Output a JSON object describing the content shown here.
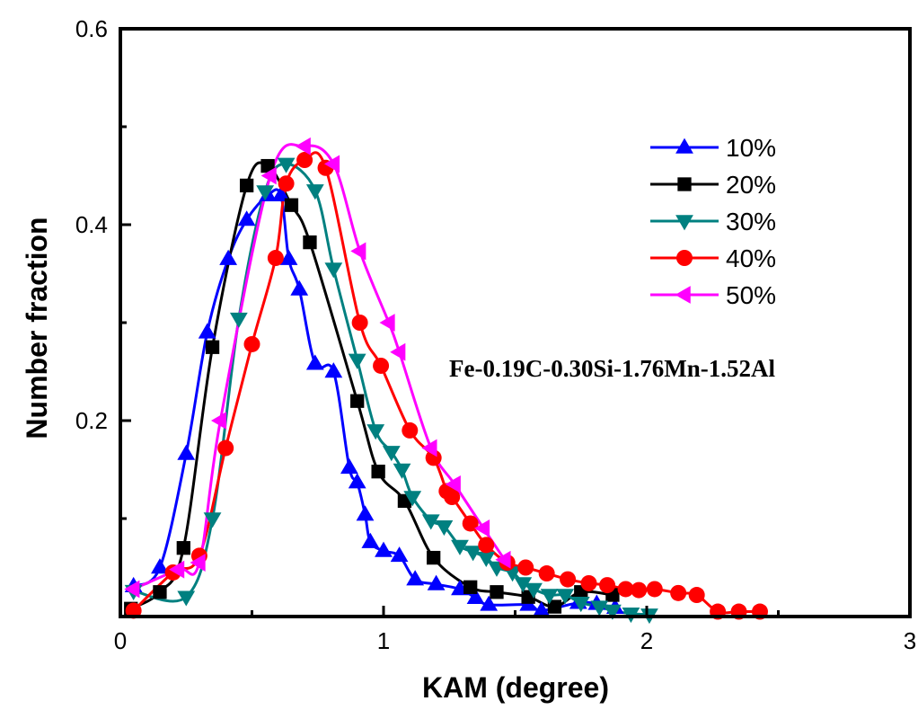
{
  "chart_data": {
    "type": "line",
    "title": "",
    "xlabel": "KAM (degree)",
    "ylabel": "Number fraction",
    "xlim": [
      0,
      3
    ],
    "ylim": [
      0,
      0.6
    ],
    "xticks": [
      0,
      1,
      2,
      3
    ],
    "xtick_labels": [
      "0",
      "1",
      "2",
      "3"
    ],
    "xminor": [
      0.5,
      1.5,
      2.5
    ],
    "yticks": [
      0.2,
      0.4,
      0.6
    ],
    "ytick_labels": [
      "0.2",
      "0.4",
      "0.6"
    ],
    "yminor": [
      0.1,
      0.3,
      0.5
    ],
    "grid": false,
    "legend_position": "top-right",
    "annotation": "Fe-0.19C-0.30Si-1.76Mn-1.52Al",
    "series": [
      {
        "name": "10%",
        "color": "#0000ff",
        "marker": "triangle-up",
        "x": [
          0.05,
          0.15,
          0.25,
          0.33,
          0.41,
          0.48,
          0.56,
          0.61,
          0.64,
          0.68,
          0.74,
          0.81,
          0.87,
          0.9,
          0.93,
          0.95,
          1.0,
          1.06,
          1.12,
          1.2,
          1.29,
          1.35,
          1.4,
          1.55,
          1.6,
          1.74,
          1.81,
          1.88
        ],
        "y": [
          0.031,
          0.05,
          0.166,
          0.29,
          0.365,
          0.405,
          0.43,
          0.43,
          0.365,
          0.334,
          0.258,
          0.25,
          0.152,
          0.137,
          0.104,
          0.076,
          0.067,
          0.062,
          0.038,
          0.033,
          0.028,
          0.019,
          0.012,
          0.012,
          0.006,
          0.014,
          0.013,
          0.009
        ]
      },
      {
        "name": "20%",
        "color": "#000000",
        "marker": "square",
        "x": [
          0.04,
          0.15,
          0.24,
          0.35,
          0.48,
          0.56,
          0.65,
          0.72,
          0.9,
          0.98,
          1.08,
          1.19,
          1.33,
          1.43,
          1.55,
          1.65,
          1.75,
          1.87
        ],
        "y": [
          0.008,
          0.025,
          0.07,
          0.275,
          0.44,
          0.46,
          0.42,
          0.382,
          0.22,
          0.148,
          0.118,
          0.06,
          0.03,
          0.025,
          0.02,
          0.01,
          0.025,
          0.022
        ]
      },
      {
        "name": "30%",
        "color": "#008080",
        "marker": "triangle-down",
        "x": [
          0.05,
          0.25,
          0.35,
          0.45,
          0.55,
          0.63,
          0.74,
          0.81,
          0.9,
          0.97,
          1.03,
          1.07,
          1.11,
          1.18,
          1.23,
          1.29,
          1.34,
          1.39,
          1.43,
          1.49,
          1.53,
          1.57,
          1.63,
          1.69,
          1.75,
          1.82,
          1.87,
          1.94,
          2.01
        ],
        "y": [
          0.026,
          0.02,
          0.1,
          0.304,
          0.434,
          0.462,
          0.435,
          0.355,
          0.262,
          0.19,
          0.168,
          0.15,
          0.122,
          0.098,
          0.092,
          0.072,
          0.066,
          0.06,
          0.05,
          0.045,
          0.034,
          0.028,
          0.022,
          0.022,
          0.014,
          0.01,
          0.006,
          0.003,
          0.002
        ]
      },
      {
        "name": "40%",
        "color": "#ff0000",
        "marker": "circle",
        "x": [
          0.05,
          0.2,
          0.3,
          0.4,
          0.5,
          0.59,
          0.63,
          0.7,
          0.78,
          0.91,
          0.99,
          1.1,
          1.19,
          1.24,
          1.26,
          1.33,
          1.39,
          1.47,
          1.54,
          1.62,
          1.7,
          1.78,
          1.85,
          1.92,
          1.97,
          2.03,
          2.12,
          2.19,
          2.27,
          2.35,
          2.43
        ],
        "y": [
          0.006,
          0.045,
          0.062,
          0.172,
          0.278,
          0.366,
          0.442,
          0.466,
          0.458,
          0.3,
          0.256,
          0.19,
          0.162,
          0.128,
          0.122,
          0.095,
          0.073,
          0.055,
          0.05,
          0.044,
          0.038,
          0.034,
          0.032,
          0.028,
          0.027,
          0.028,
          0.024,
          0.022,
          0.005,
          0.005,
          0.005
        ]
      },
      {
        "name": "50%",
        "color": "#ff00ff",
        "marker": "triangle-left",
        "x": [
          0.05,
          0.22,
          0.3,
          0.38,
          0.57,
          0.7,
          0.81,
          0.91,
          1.02,
          1.06,
          1.18,
          1.27,
          1.38,
          1.46
        ],
        "y": [
          0.028,
          0.048,
          0.055,
          0.2,
          0.45,
          0.48,
          0.462,
          0.373,
          0.3,
          0.27,
          0.172,
          0.135,
          0.09,
          0.058
        ]
      }
    ]
  }
}
